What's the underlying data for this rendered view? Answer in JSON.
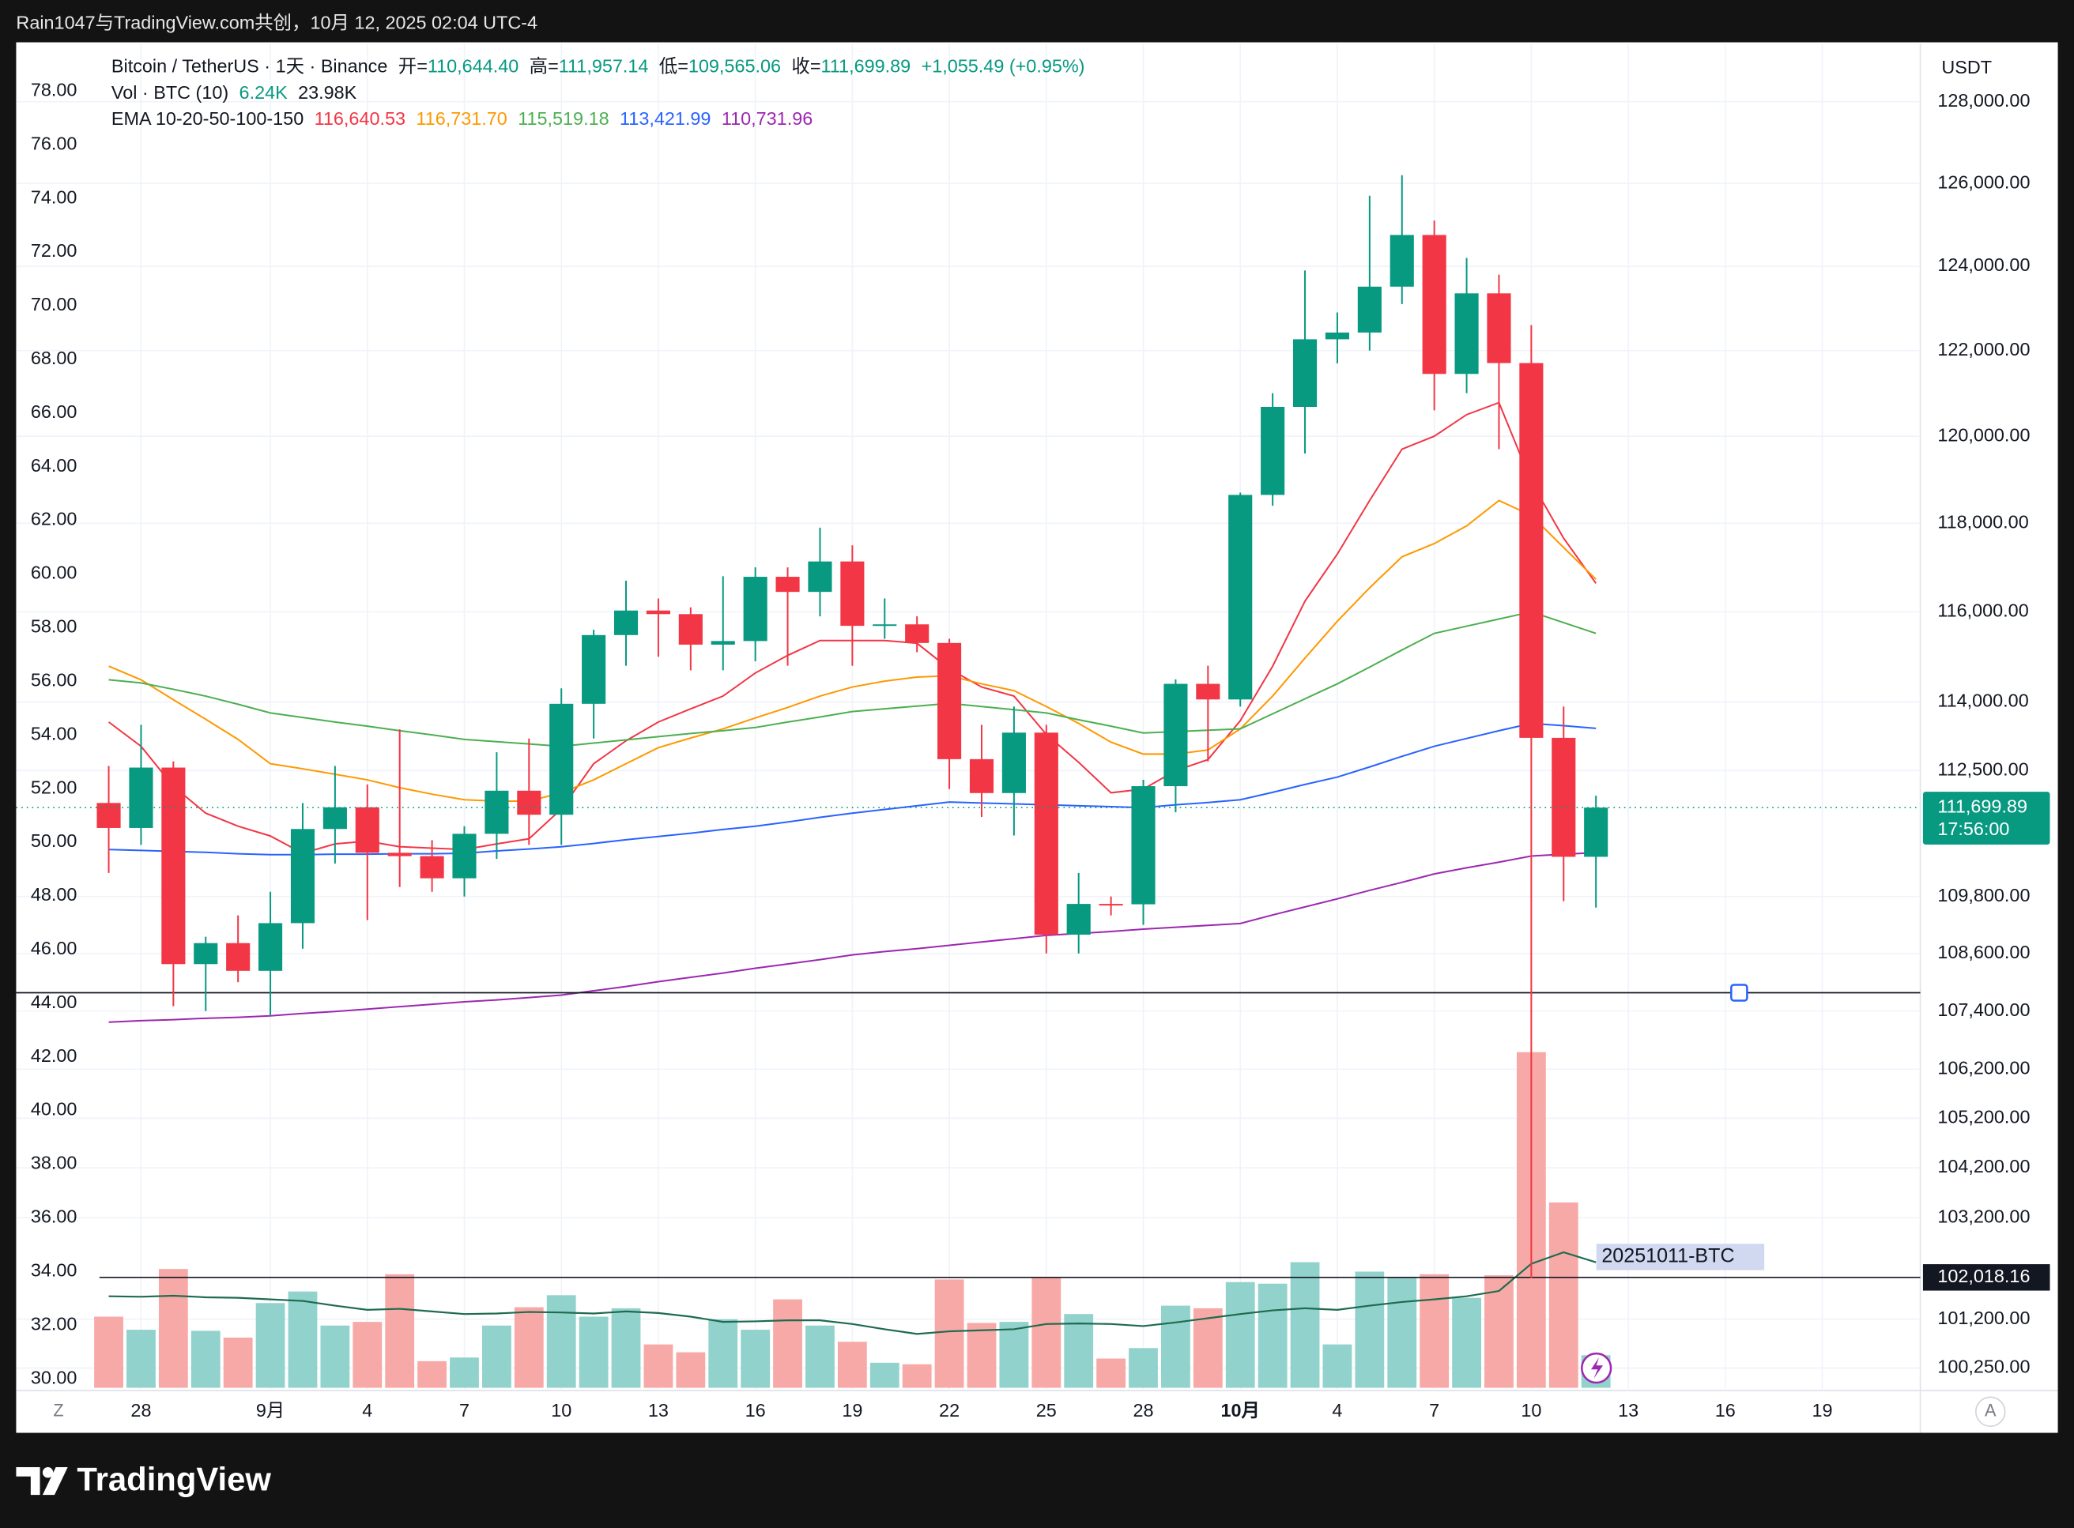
{
  "chart_data": {
    "type": "candlestick",
    "top_caption": "Rain1047与TradingView.com共创，10月 12, 2025 02:04 UTC-4",
    "brand": "TradingView",
    "currency": "USDT",
    "buttons": [
      "Z",
      "A"
    ],
    "header": {
      "symbol": "Bitcoin / TetherUS · 1天 · Binance",
      "ohlc": [
        {
          "key": "开=",
          "value": "110,644.40"
        },
        {
          "key": "高=",
          "value": "111,957.14"
        },
        {
          "key": "低=",
          "value": "109,565.06"
        },
        {
          "key": "收=",
          "value": "111,699.89"
        }
      ],
      "change": "+1,055.49 (+0.95%)",
      "vol_label": "Vol · BTC (10)",
      "vol_values": [
        "6.24K",
        "23.98K"
      ],
      "ema_label": "EMA 10-20-50-100-150"
    },
    "categories": [
      null,
      "28",
      null,
      null,
      null,
      "9月",
      null,
      null,
      "4",
      null,
      null,
      "7",
      null,
      null,
      "10",
      null,
      null,
      "13",
      null,
      null,
      "16",
      null,
      null,
      "19",
      null,
      null,
      "22",
      null,
      null,
      "25",
      null,
      null,
      "28",
      null,
      null,
      "10月",
      null,
      null,
      "4",
      null,
      null,
      "7",
      null,
      null,
      "10",
      null,
      null,
      "13",
      null,
      null,
      "16",
      null,
      null,
      "19"
    ],
    "open": [
      111800,
      111262,
      112566,
      108377,
      108817,
      108236,
      109237,
      111240,
      111706,
      110730,
      110659,
      110187,
      111137,
      112065,
      111546,
      113960,
      115482,
      116030,
      115950,
      115269,
      115349,
      116788,
      116448,
      117134,
      115688,
      115721,
      115306,
      112749,
      112014,
      113328,
      108994,
      109643,
      109635,
      112163,
      114400,
      114056,
      118648,
      120681,
      122266,
      122425,
      123514,
      124752,
      121451,
      123354,
      121706,
      113214,
      110644.4,
      null,
      null,
      null,
      null,
      null,
      null,
      null
    ],
    "high": [
      112600,
      113500,
      112700,
      108950,
      109400,
      109900,
      111800,
      112600,
      112200,
      113400,
      111000,
      111300,
      112900,
      113200,
      114300,
      115600,
      116700,
      116300,
      116100,
      116800,
      117000,
      117000,
      117900,
      117500,
      116300,
      115900,
      115400,
      113500,
      113900,
      113500,
      110300,
      109800,
      112300,
      114500,
      114800,
      118700,
      121000,
      123900,
      122900,
      125700,
      126200,
      125100,
      124200,
      123800,
      122600,
      113900,
      111957.14,
      null,
      null,
      null,
      null,
      null,
      null,
      null
    ],
    "low": [
      110300,
      110900,
      107500,
      107400,
      108000,
      107300,
      108700,
      110500,
      109300,
      110000,
      109900,
      109800,
      110600,
      110900,
      110900,
      113200,
      114800,
      115000,
      114700,
      114700,
      114900,
      114800,
      115900,
      114800,
      115400,
      115100,
      112100,
      111500,
      111100,
      108600,
      108600,
      109400,
      109200,
      111600,
      112700,
      113900,
      118400,
      119600,
      121700,
      122000,
      123100,
      120600,
      121000,
      119700,
      102000,
      109700,
      109565.06,
      null,
      null,
      null,
      null,
      null,
      null,
      null
    ],
    "close": [
      111262,
      112566,
      108377,
      108817,
      108236,
      109237,
      111240,
      111706,
      110730,
      110659,
      110187,
      111137,
      112065,
      111546,
      113960,
      115482,
      116030,
      115950,
      115269,
      115349,
      116788,
      116448,
      117134,
      115688,
      115721,
      115306,
      112749,
      112014,
      113328,
      108994,
      109643,
      109635,
      112163,
      114400,
      114056,
      118648,
      120681,
      122266,
      122425,
      123514,
      124752,
      121451,
      123354,
      121706,
      113214,
      110644.4,
      111699.89,
      null,
      null,
      null,
      null,
      null,
      null,
      null
    ],
    "up_color": "#089981",
    "down_color": "#f23645",
    "volume": {
      "values": [
        13.6,
        11.1,
        22.7,
        10.9,
        9.6,
        16.2,
        18.4,
        11.9,
        12.6,
        21.7,
        5.1,
        5.8,
        11.9,
        15.4,
        17.7,
        13.6,
        15.2,
        8.3,
        6.8,
        13.1,
        11.1,
        16.9,
        11.9,
        8.8,
        4.8,
        4.5,
        20.7,
        12.4,
        12.6,
        21.2,
        14.1,
        5.6,
        7.6,
        15.7,
        15.2,
        20.2,
        19.9,
        24.0,
        8.3,
        22.2,
        21.2,
        21.7,
        17.2,
        21.5,
        64.1,
        35.4,
        6.24,
        null,
        null,
        null,
        null,
        null,
        null,
        null
      ],
      "ma": {
        "color": "#1e6b4f",
        "values": [
          17.5,
          17.4,
          17.6,
          17.3,
          17.2,
          16.9,
          16.6,
          15.7,
          14.9,
          15.1,
          14.6,
          14.1,
          14.2,
          14.5,
          14.4,
          14.2,
          14.6,
          14.3,
          13.6,
          12.6,
          12.7,
          12.9,
          12.9,
          12.2,
          11.2,
          10.3,
          10.8,
          11.0,
          11.2,
          12.2,
          12.3,
          12.2,
          11.8,
          12.5,
          13.3,
          14.1,
          14.8,
          15.2,
          14.9,
          15.7,
          16.4,
          16.9,
          17.5,
          18.5,
          23.7,
          25.9,
          23.98,
          null,
          null,
          null,
          null,
          null,
          null,
          null
        ]
      },
      "ylim": [
        0,
        80
      ],
      "up_color": "#92d2cc",
      "down_color": "#f7a9a7"
    },
    "series": [
      {
        "color": "#f23645",
        "last_label": "116,640.53",
        "values": [
          113560,
          113030,
          112160,
          111580,
          111300,
          111090,
          110720,
          110920,
          110980,
          110860,
          110830,
          110800,
          110920,
          111030,
          111670,
          112650,
          113150,
          113560,
          113850,
          114130,
          114640,
          115030,
          115360,
          115360,
          115360,
          115300,
          114730,
          114330,
          114130,
          113290,
          112680,
          112020,
          112100,
          112500,
          112740,
          113590,
          114790,
          116240,
          117300,
          118520,
          119700,
          120000,
          120500,
          120780,
          118950,
          117660,
          116640.53,
          null,
          null,
          null,
          null,
          null,
          null,
          null
        ]
      },
      {
        "color": "#ff9800",
        "last_label": "116,731.70",
        "values": [
          114790,
          114490,
          114050,
          113620,
          113180,
          112650,
          112540,
          112420,
          112300,
          112130,
          111990,
          111870,
          111840,
          111840,
          112020,
          112300,
          112650,
          113000,
          113210,
          113410,
          113650,
          113880,
          114130,
          114330,
          114460,
          114550,
          114580,
          114400,
          114250,
          113900,
          113530,
          113120,
          112860,
          112860,
          112950,
          113410,
          114130,
          114970,
          115790,
          116540,
          117240,
          117540,
          117940,
          118520,
          118180,
          117450,
          116731.7,
          null,
          null,
          null,
          null,
          null,
          null,
          null
        ]
      },
      {
        "color": "#4caf50",
        "last_label": "115,519.18",
        "values": [
          114490,
          114420,
          114280,
          114130,
          113950,
          113760,
          113660,
          113560,
          113470,
          113370,
          113280,
          113180,
          113130,
          113080,
          113030,
          113100,
          113170,
          113240,
          113310,
          113370,
          113440,
          113560,
          113670,
          113790,
          113850,
          113910,
          113970,
          113900,
          113830,
          113760,
          113610,
          113470,
          113320,
          113350,
          113380,
          113410,
          113740,
          114070,
          114400,
          114770,
          115150,
          115520,
          115680,
          115840,
          116000,
          115760,
          115519.18,
          null,
          null,
          null,
          null,
          null,
          null,
          null
        ]
      },
      {
        "color": "#2962ff",
        "last_label": "113,421.99",
        "values": [
          110800,
          110780,
          110760,
          110740,
          110710,
          110690,
          110690,
          110700,
          110700,
          110710,
          110710,
          110720,
          110770,
          110810,
          110860,
          110930,
          111010,
          111080,
          111150,
          111230,
          111300,
          111390,
          111490,
          111580,
          111660,
          111740,
          111820,
          111800,
          111780,
          111760,
          111740,
          111720,
          111700,
          111760,
          111810,
          111870,
          112030,
          112200,
          112360,
          112580,
          112810,
          113030,
          113200,
          113370,
          113530,
          113480,
          113421.99,
          null,
          null,
          null,
          null,
          null,
          null,
          null
        ]
      },
      {
        "color": "#9c27b0",
        "last_label": "110,731.96",
        "values": [
          107170,
          107200,
          107220,
          107250,
          107270,
          107300,
          107350,
          107390,
          107440,
          107490,
          107540,
          107590,
          107630,
          107680,
          107730,
          107820,
          107910,
          108010,
          108100,
          108190,
          108290,
          108380,
          108470,
          108570,
          108640,
          108700,
          108770,
          108840,
          108910,
          108980,
          109020,
          109060,
          109110,
          109150,
          109190,
          109230,
          109410,
          109580,
          109750,
          109930,
          110100,
          110280,
          110410,
          110530,
          110660,
          110700,
          110731.96,
          null,
          null,
          null,
          null,
          null,
          null,
          null
        ]
      }
    ],
    "ylim": [
      99866,
      129445
    ],
    "log_scale": true,
    "grid": true,
    "yticks": [
      {
        "value": 128000,
        "label": "128,000.00"
      },
      {
        "value": 126000,
        "label": "126,000.00"
      },
      {
        "value": 124000,
        "label": "124,000.00"
      },
      {
        "value": 122000,
        "label": "122,000.00"
      },
      {
        "value": 120000,
        "label": "120,000.00"
      },
      {
        "value": 118000,
        "label": "118,000.00"
      },
      {
        "value": 116000,
        "label": "116,000.00"
      },
      {
        "value": 114000,
        "label": "114,000.00"
      },
      {
        "value": 112500,
        "label": "112,500.00"
      },
      {
        "value": 109800,
        "label": "109,800.00"
      },
      {
        "value": 108600,
        "label": "108,600.00"
      },
      {
        "value": 107400,
        "label": "107,400.00"
      },
      {
        "value": 106200,
        "label": "106,200.00"
      },
      {
        "value": 105200,
        "label": "105,200.00"
      },
      {
        "value": 104200,
        "label": "104,200.00"
      },
      {
        "value": 103200,
        "label": "103,200.00"
      },
      {
        "value": 101200,
        "label": "101,200.00"
      },
      {
        "value": 100250,
        "label": "100,250.00"
      }
    ],
    "y2lim": [
      29.66,
      79.77
    ],
    "y2ticks": [
      {
        "value": 78,
        "label": "78.00"
      },
      {
        "value": 76,
        "label": "76.00"
      },
      {
        "value": 74,
        "label": "74.00"
      },
      {
        "value": 72,
        "label": "72.00"
      },
      {
        "value": 70,
        "label": "70.00"
      },
      {
        "value": 68,
        "label": "68.00"
      },
      {
        "value": 66,
        "label": "66.00"
      },
      {
        "value": 64,
        "label": "64.00"
      },
      {
        "value": 62,
        "label": "62.00"
      },
      {
        "value": 60,
        "label": "60.00"
      },
      {
        "value": 58,
        "label": "58.00"
      },
      {
        "value": 56,
        "label": "56.00"
      },
      {
        "value": 54,
        "label": "54.00"
      },
      {
        "value": 52,
        "label": "52.00"
      },
      {
        "value": 50,
        "label": "50.00"
      },
      {
        "value": 48,
        "label": "48.00"
      },
      {
        "value": 46,
        "label": "46.00"
      },
      {
        "value": 44,
        "label": "44.00"
      },
      {
        "value": 42,
        "label": "42.00"
      },
      {
        "value": 40,
        "label": "40.00"
      },
      {
        "value": 38,
        "label": "38.00"
      },
      {
        "value": 36,
        "label": "36.00"
      },
      {
        "value": 34,
        "label": "34.00"
      },
      {
        "value": 32,
        "label": "32.00"
      },
      {
        "value": 30,
        "label": "30.00"
      }
    ],
    "last_price": {
      "value": 111699.89,
      "label": "111,699.89",
      "countdown": "17:56:00"
    },
    "hlines": [
      {
        "value": 107780
      },
      {
        "value": 102018.16,
        "label": "102,018.16"
      }
    ],
    "indicator_label": "20251011-BTC"
  }
}
